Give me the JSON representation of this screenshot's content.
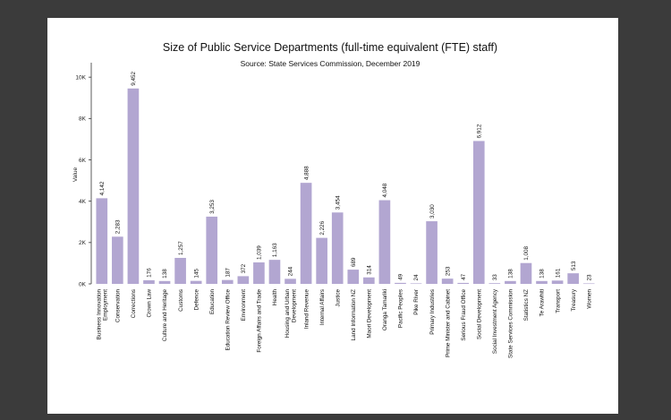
{
  "chart_data": {
    "type": "bar",
    "title": "Size of Public Service Departments (full-time equivalent (FTE) staff)",
    "subtitle": "Source: State Services Commission, December 2019",
    "xlabel": "",
    "ylabel": "Value",
    "ylim": [
      0,
      10700
    ],
    "yticks": [
      0,
      2000,
      4000,
      6000,
      8000,
      10000
    ],
    "ytick_labels": [
      "0K",
      "2K",
      "4K",
      "6K",
      "8K",
      "10K"
    ],
    "bar_color": "#b2a6d1",
    "categories": [
      [
        "Business Innovation",
        "Employment"
      ],
      [
        "Conservation"
      ],
      [
        "Corrections"
      ],
      [
        "Crown Law"
      ],
      [
        "Culture and Heritage"
      ],
      [
        "Customs"
      ],
      [
        "Defence"
      ],
      [
        "Education"
      ],
      [
        "Education Review Office"
      ],
      [
        "Environment"
      ],
      [
        "Foreign Affairs and Trade"
      ],
      [
        "Health"
      ],
      [
        "Housing and Urban",
        "Development"
      ],
      [
        "Inland Revenue"
      ],
      [
        "Internal Affairs"
      ],
      [
        "Justice"
      ],
      [
        "Land Information NZ"
      ],
      [
        "Maori Development"
      ],
      [
        "Oranga Tamariki"
      ],
      [
        "Pacific Peoples"
      ],
      [
        "Pike River"
      ],
      [
        "Primary Industries"
      ],
      [
        "Prime Minister and Cabinet"
      ],
      [
        "Serious Fraud Office"
      ],
      [
        "Social Development"
      ],
      [
        "Social Investment Agency"
      ],
      [
        "State Services Commission"
      ],
      [
        "Statistics NZ"
      ],
      [
        "Te Arawhiti"
      ],
      [
        "Transport"
      ],
      [
        "Treasury"
      ],
      [
        "Women"
      ]
    ],
    "values": [
      4142,
      2283,
      9452,
      176,
      138,
      1257,
      145,
      3253,
      187,
      372,
      1039,
      1163,
      244,
      4888,
      2226,
      3454,
      689,
      314,
      4048,
      49,
      24,
      3030,
      253,
      47,
      6912,
      33,
      138,
      1008,
      138,
      161,
      513,
      23
    ],
    "value_labels": [
      "4,142",
      "2,283",
      "9,452",
      "176",
      "138",
      "1,257",
      "145",
      "3,253",
      "187",
      "372",
      "1,039",
      "1,163",
      "244",
      "4,888",
      "2,226",
      "3,454",
      "689",
      "314",
      "4,048",
      "49",
      "24",
      "3,030",
      "253",
      "47",
      "6,912",
      "33",
      "138",
      "1,008",
      "138",
      "161",
      "513",
      "23"
    ]
  }
}
